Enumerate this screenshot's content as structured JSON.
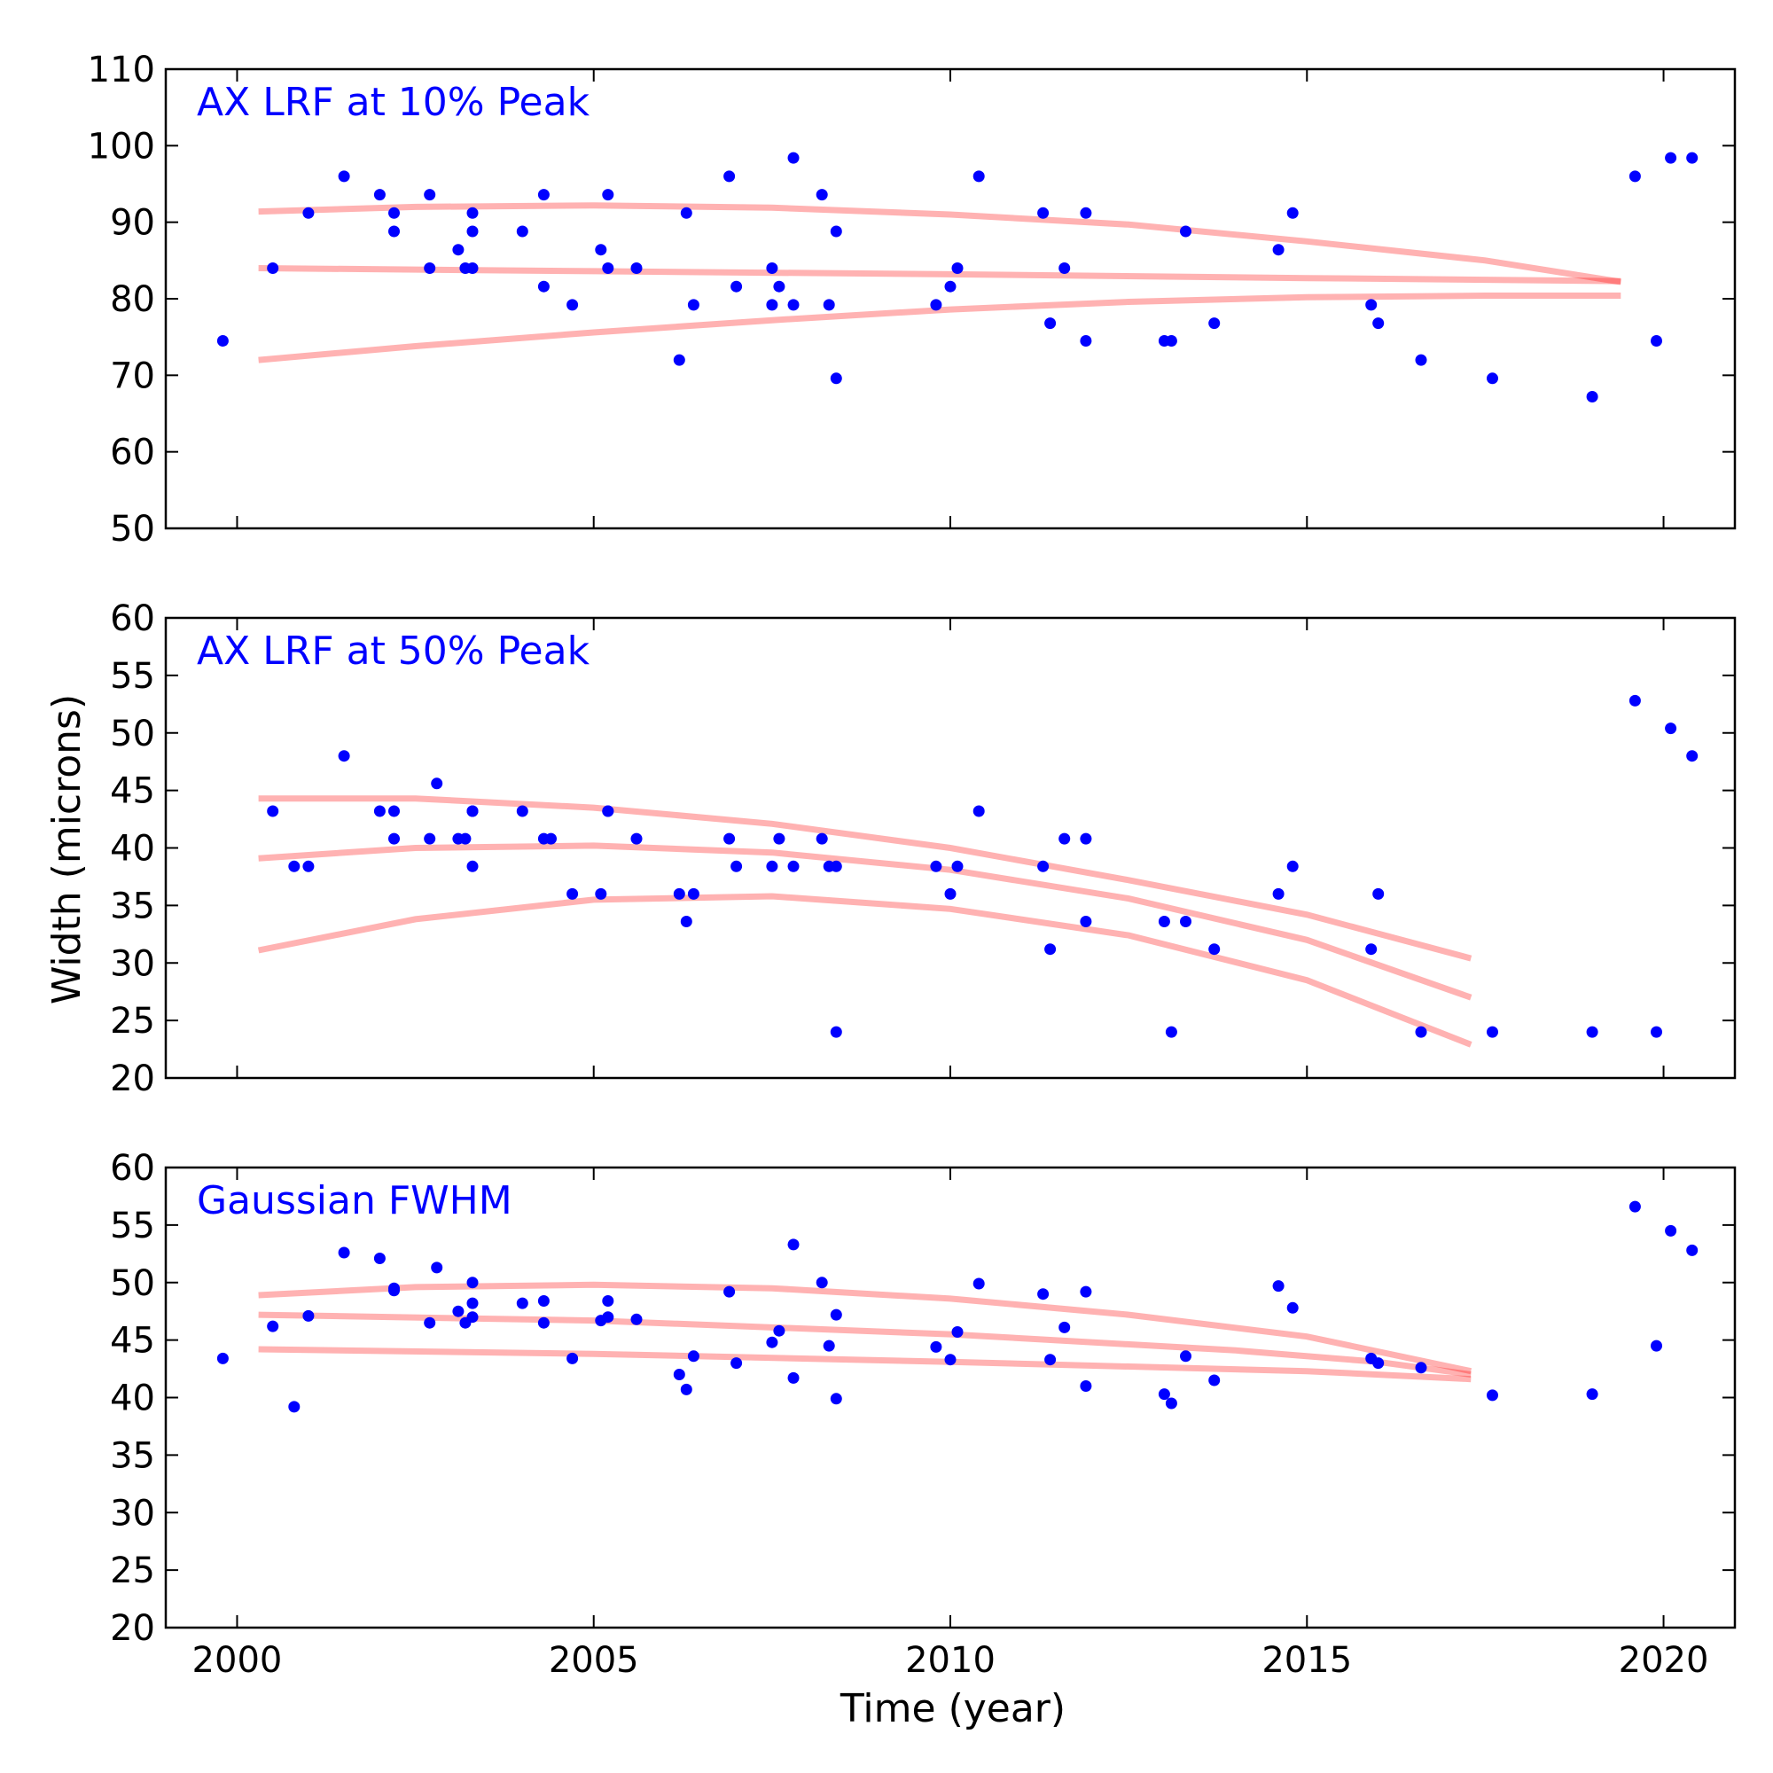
{
  "figure": {
    "ylabel": "Width (microns)",
    "xlabel": "Time (year)",
    "xticks": [
      2000,
      2005,
      2010,
      2015,
      2020
    ],
    "xlim": [
      1999,
      2021
    ],
    "point_color": "#0000ff",
    "line_color": "#ff0000",
    "title_color": "#0000ff"
  },
  "chart_data": [
    {
      "type": "scatter",
      "title": "AX LRF at 10% Peak",
      "ylim": [
        50,
        110
      ],
      "yticks": [
        50,
        60,
        70,
        80,
        90,
        100,
        110
      ],
      "points": [
        [
          1999.8,
          74.5
        ],
        [
          2000.5,
          84
        ],
        [
          2001.0,
          91.2
        ],
        [
          2001.5,
          96
        ],
        [
          2002.0,
          93.6
        ],
        [
          2002.2,
          91.2
        ],
        [
          2002.2,
          88.8
        ],
        [
          2002.7,
          84
        ],
        [
          2002.7,
          93.6
        ],
        [
          2003.1,
          86.4
        ],
        [
          2003.2,
          84
        ],
        [
          2003.3,
          84
        ],
        [
          2003.3,
          91.2
        ],
        [
          2003.3,
          88.8
        ],
        [
          2004.0,
          88.8
        ],
        [
          2004.3,
          93.6
        ],
        [
          2004.3,
          81.6
        ],
        [
          2004.7,
          79.2
        ],
        [
          2005.1,
          86.4
        ],
        [
          2005.2,
          93.6
        ],
        [
          2005.2,
          84
        ],
        [
          2005.6,
          84
        ],
        [
          2006.2,
          72
        ],
        [
          2006.3,
          91.2
        ],
        [
          2006.4,
          79.2
        ],
        [
          2006.9,
          96
        ],
        [
          2007.0,
          81.6
        ],
        [
          2007.5,
          84
        ],
        [
          2007.5,
          79.2
        ],
        [
          2007.6,
          81.6
        ],
        [
          2007.8,
          79.2
        ],
        [
          2007.8,
          98.4
        ],
        [
          2008.2,
          93.6
        ],
        [
          2008.3,
          79.2
        ],
        [
          2008.4,
          69.6
        ],
        [
          2008.4,
          88.8
        ],
        [
          2009.8,
          79.2
        ],
        [
          2010.0,
          81.6
        ],
        [
          2010.1,
          84
        ],
        [
          2010.4,
          96
        ],
        [
          2011.3,
          91.2
        ],
        [
          2011.4,
          76.8
        ],
        [
          2011.6,
          84
        ],
        [
          2011.9,
          91.2
        ],
        [
          2011.9,
          74.5
        ],
        [
          2013.0,
          74.5
        ],
        [
          2013.1,
          74.5
        ],
        [
          2013.3,
          88.8
        ],
        [
          2013.7,
          76.8
        ],
        [
          2014.6,
          86.4
        ],
        [
          2014.8,
          91.2
        ],
        [
          2015.9,
          79.2
        ],
        [
          2016.0,
          76.8
        ],
        [
          2016.6,
          72
        ],
        [
          2017.6,
          69.6
        ],
        [
          2019.0,
          67.2
        ],
        [
          2019.6,
          96
        ],
        [
          2019.9,
          74.5
        ],
        [
          2020.1,
          98.4
        ],
        [
          2020.4,
          98.4
        ]
      ],
      "fit_lines": [
        [
          [
            2000.3,
            91.4
          ],
          [
            2002.5,
            92.0
          ],
          [
            2005.0,
            92.2
          ],
          [
            2007.5,
            91.9
          ],
          [
            2010.0,
            91.0
          ],
          [
            2012.5,
            89.7
          ],
          [
            2015.0,
            87.5
          ],
          [
            2017.5,
            85.0
          ],
          [
            2019.4,
            82.2
          ]
        ],
        [
          [
            2000.3,
            84.0
          ],
          [
            2005.0,
            83.6
          ],
          [
            2010.0,
            83.2
          ],
          [
            2015.0,
            82.7
          ],
          [
            2019.4,
            82.3
          ]
        ],
        [
          [
            2000.3,
            72.0
          ],
          [
            2002.5,
            73.8
          ],
          [
            2005.0,
            75.6
          ],
          [
            2007.5,
            77.2
          ],
          [
            2010.0,
            78.6
          ],
          [
            2012.5,
            79.6
          ],
          [
            2015.0,
            80.2
          ],
          [
            2017.5,
            80.4
          ],
          [
            2019.4,
            80.4
          ]
        ]
      ]
    },
    {
      "type": "scatter",
      "title": "AX LRF at 50% Peak",
      "ylim": [
        20,
        60
      ],
      "yticks": [
        20,
        25,
        30,
        35,
        40,
        45,
        50,
        55,
        60
      ],
      "points": [
        [
          2000.5,
          43.2
        ],
        [
          2000.8,
          38.4
        ],
        [
          2001.0,
          38.4
        ],
        [
          2001.5,
          48
        ],
        [
          2002.0,
          43.2
        ],
        [
          2002.2,
          43.2
        ],
        [
          2002.2,
          40.8
        ],
        [
          2002.7,
          40.8
        ],
        [
          2002.8,
          45.6
        ],
        [
          2003.1,
          40.8
        ],
        [
          2003.2,
          40.8
        ],
        [
          2003.3,
          43.2
        ],
        [
          2003.3,
          43.2
        ],
        [
          2003.3,
          38.4
        ],
        [
          2004.0,
          43.2
        ],
        [
          2004.3,
          40.8
        ],
        [
          2004.4,
          40.8
        ],
        [
          2004.7,
          36
        ],
        [
          2005.1,
          36
        ],
        [
          2005.2,
          43.2
        ],
        [
          2005.2,
          43.2
        ],
        [
          2005.6,
          40.8
        ],
        [
          2006.2,
          36
        ],
        [
          2006.3,
          33.6
        ],
        [
          2006.4,
          36
        ],
        [
          2006.9,
          40.8
        ],
        [
          2007.0,
          38.4
        ],
        [
          2007.5,
          38.4
        ],
        [
          2007.6,
          40.8
        ],
        [
          2007.8,
          38.4
        ],
        [
          2008.2,
          40.8
        ],
        [
          2008.3,
          38.4
        ],
        [
          2008.4,
          24
        ],
        [
          2008.4,
          38.4
        ],
        [
          2009.8,
          38.4
        ],
        [
          2010.0,
          36
        ],
        [
          2010.1,
          38.4
        ],
        [
          2010.4,
          43.2
        ],
        [
          2011.3,
          38.4
        ],
        [
          2011.4,
          31.2
        ],
        [
          2011.6,
          40.8
        ],
        [
          2011.9,
          40.8
        ],
        [
          2011.9,
          33.6
        ],
        [
          2013.0,
          33.6
        ],
        [
          2013.1,
          24
        ],
        [
          2013.3,
          33.6
        ],
        [
          2013.7,
          31.2
        ],
        [
          2014.6,
          36
        ],
        [
          2014.8,
          38.4
        ],
        [
          2015.9,
          31.2
        ],
        [
          2016.0,
          36
        ],
        [
          2016.6,
          24
        ],
        [
          2017.6,
          24
        ],
        [
          2019.0,
          24
        ],
        [
          2019.6,
          52.8
        ],
        [
          2019.9,
          24
        ],
        [
          2020.1,
          50.4
        ],
        [
          2020.4,
          48
        ]
      ],
      "fit_lines": [
        [
          [
            2000.3,
            44.3
          ],
          [
            2002.5,
            44.3
          ],
          [
            2005.0,
            43.5
          ],
          [
            2007.5,
            42.1
          ],
          [
            2010.0,
            40.0
          ],
          [
            2012.5,
            37.2
          ],
          [
            2015.0,
            34.2
          ],
          [
            2017.3,
            30.4
          ]
        ],
        [
          [
            2000.3,
            39.1
          ],
          [
            2002.5,
            40.0
          ],
          [
            2005.0,
            40.2
          ],
          [
            2007.5,
            39.6
          ],
          [
            2010.0,
            38.1
          ],
          [
            2012.5,
            35.6
          ],
          [
            2015.0,
            32.0
          ],
          [
            2017.3,
            27.0
          ]
        ],
        [
          [
            2000.3,
            31.1
          ],
          [
            2002.5,
            33.8
          ],
          [
            2005.0,
            35.5
          ],
          [
            2007.5,
            35.8
          ],
          [
            2010.0,
            34.7
          ],
          [
            2012.5,
            32.4
          ],
          [
            2015.0,
            28.5
          ],
          [
            2017.3,
            22.9
          ]
        ]
      ]
    },
    {
      "type": "scatter",
      "title": "Gaussian FWHM",
      "ylim": [
        20,
        60
      ],
      "yticks": [
        20,
        25,
        30,
        35,
        40,
        45,
        50,
        55,
        60
      ],
      "points": [
        [
          1999.8,
          43.4
        ],
        [
          2000.5,
          46.2
        ],
        [
          2000.8,
          39.2
        ],
        [
          2001.0,
          47.1
        ],
        [
          2001.5,
          52.6
        ],
        [
          2002.0,
          52.1
        ],
        [
          2002.2,
          49.5
        ],
        [
          2002.2,
          49.3
        ],
        [
          2002.7,
          46.5
        ],
        [
          2002.8,
          51.3
        ],
        [
          2003.1,
          47.5
        ],
        [
          2003.2,
          46.5
        ],
        [
          2003.3,
          47.0
        ],
        [
          2003.3,
          50.0
        ],
        [
          2003.3,
          48.2
        ],
        [
          2004.0,
          48.2
        ],
        [
          2004.3,
          48.4
        ],
        [
          2004.3,
          46.5
        ],
        [
          2004.7,
          43.4
        ],
        [
          2005.1,
          46.7
        ],
        [
          2005.2,
          48.4
        ],
        [
          2005.2,
          47.0
        ],
        [
          2005.6,
          46.8
        ],
        [
          2006.2,
          42.0
        ],
        [
          2006.3,
          40.7
        ],
        [
          2006.4,
          43.6
        ],
        [
          2006.9,
          49.2
        ],
        [
          2007.0,
          43.0
        ],
        [
          2007.5,
          44.8
        ],
        [
          2007.6,
          45.8
        ],
        [
          2007.8,
          41.7
        ],
        [
          2007.8,
          53.3
        ],
        [
          2008.2,
          50.0
        ],
        [
          2008.3,
          44.5
        ],
        [
          2008.4,
          39.9
        ],
        [
          2008.4,
          47.2
        ],
        [
          2009.8,
          44.4
        ],
        [
          2010.0,
          43.3
        ],
        [
          2010.1,
          45.7
        ],
        [
          2010.4,
          49.9
        ],
        [
          2011.3,
          49.0
        ],
        [
          2011.4,
          43.3
        ],
        [
          2011.6,
          46.1
        ],
        [
          2011.9,
          41.0
        ],
        [
          2011.9,
          49.2
        ],
        [
          2013.0,
          40.3
        ],
        [
          2013.1,
          39.5
        ],
        [
          2013.3,
          43.6
        ],
        [
          2013.7,
          41.5
        ],
        [
          2014.6,
          49.7
        ],
        [
          2014.8,
          47.8
        ],
        [
          2015.9,
          43.4
        ],
        [
          2016.0,
          43.0
        ],
        [
          2016.6,
          42.6
        ],
        [
          2017.6,
          40.2
        ],
        [
          2019.0,
          40.3
        ],
        [
          2019.6,
          56.6
        ],
        [
          2019.9,
          44.5
        ],
        [
          2020.1,
          54.5
        ],
        [
          2020.4,
          52.8
        ]
      ],
      "fit_lines": [
        [
          [
            2000.3,
            48.9
          ],
          [
            2002.5,
            49.6
          ],
          [
            2005.0,
            49.8
          ],
          [
            2007.5,
            49.5
          ],
          [
            2010.0,
            48.6
          ],
          [
            2012.5,
            47.2
          ],
          [
            2015.0,
            45.3
          ],
          [
            2017.3,
            42.3
          ]
        ],
        [
          [
            2000.3,
            47.2
          ],
          [
            2005.0,
            46.7
          ],
          [
            2010.0,
            45.5
          ],
          [
            2014.0,
            44.1
          ],
          [
            2016.0,
            43.1
          ],
          [
            2017.3,
            42.0
          ]
        ],
        [
          [
            2000.3,
            44.2
          ],
          [
            2005.0,
            43.8
          ],
          [
            2010.0,
            43.1
          ],
          [
            2015.0,
            42.3
          ],
          [
            2017.3,
            41.6
          ]
        ]
      ]
    }
  ]
}
